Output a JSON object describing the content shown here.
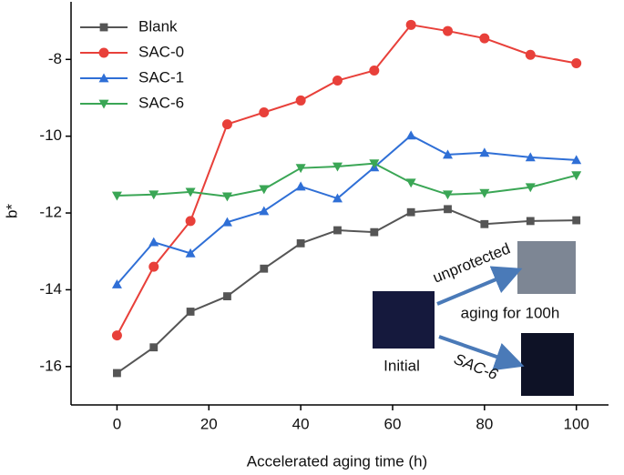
{
  "chart_data": {
    "type": "line",
    "x_label": "Accelerated aging time (h)",
    "y_label": "b*",
    "x": [
      0,
      8,
      16,
      24,
      32,
      40,
      48,
      56,
      64,
      72,
      80,
      90,
      100
    ],
    "series": [
      {
        "name": "Blank",
        "color": "#555555",
        "marker": "square",
        "values": [
          -16.17,
          -15.5,
          -14.57,
          -14.17,
          -13.45,
          -12.79,
          -12.45,
          -12.5,
          -11.98,
          -11.9,
          -12.29,
          -12.21,
          -12.19
        ]
      },
      {
        "name": "SAC-0",
        "color": "#e8403a",
        "marker": "circle",
        "values": [
          -15.19,
          -13.4,
          -12.21,
          -9.69,
          -9.38,
          -9.07,
          -8.55,
          -8.29,
          -7.1,
          -7.26,
          -7.45,
          -7.88,
          -8.1
        ]
      },
      {
        "name": "SAC-1",
        "color": "#2f6fd6",
        "marker": "triangle-up",
        "values": [
          -13.86,
          -12.76,
          -13.05,
          -12.24,
          -11.95,
          -11.31,
          -11.62,
          -10.81,
          -9.98,
          -10.48,
          -10.43,
          -10.55,
          -10.62
        ]
      },
      {
        "name": "SAC-6",
        "color": "#3aa655",
        "marker": "triangle-down",
        "values": [
          -11.55,
          -11.52,
          -11.45,
          -11.57,
          -11.38,
          -10.83,
          -10.79,
          -10.71,
          -11.21,
          -11.52,
          -11.48,
          -11.33,
          -11.02
        ]
      }
    ],
    "xlim": [
      -10,
      107
    ],
    "xticks": [
      0,
      20,
      40,
      60,
      80,
      100
    ],
    "ylim": [
      -17,
      -6.5
    ],
    "yticks": [
      -16,
      -14,
      -12,
      -10,
      -8
    ],
    "legend": "upper-left",
    "annotations": [
      "unprotected",
      "aging for 100h",
      "Initial",
      "SAC-6"
    ]
  }
}
